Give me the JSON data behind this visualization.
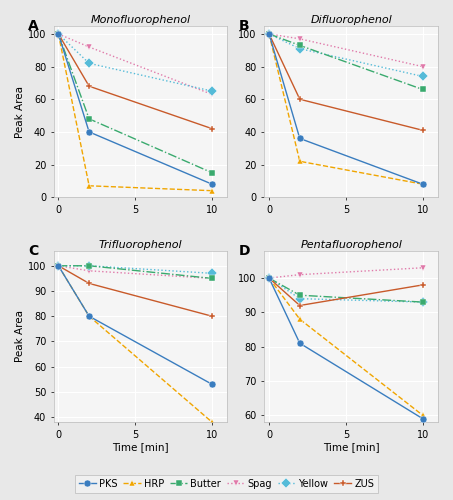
{
  "panels": [
    {
      "label": "A",
      "title": "Monofluorophenol",
      "series": {
        "PKS": {
          "x": [
            0,
            2,
            10
          ],
          "y": [
            100,
            40,
            8
          ],
          "color": "#3a7dbf",
          "linestyle": "-",
          "marker": "o",
          "markersize": 5
        },
        "HRP": {
          "x": [
            0,
            2,
            10
          ],
          "y": [
            100,
            7,
            4
          ],
          "color": "#f0a500",
          "linestyle": "--",
          "marker": "^",
          "markersize": 5
        },
        "Butter": {
          "x": [
            0,
            2,
            10
          ],
          "y": [
            100,
            48,
            15
          ],
          "color": "#3aaa6e",
          "linestyle": "-.",
          "marker": "s",
          "markersize": 5
        },
        "Spag": {
          "x": [
            0,
            2,
            10
          ],
          "y": [
            100,
            92,
            63
          ],
          "color": "#e07aaa",
          "linestyle": ":",
          "marker": "v",
          "markersize": 5
        },
        "Yellow": {
          "x": [
            0,
            2,
            10
          ],
          "y": [
            100,
            82,
            65
          ],
          "color": "#55bbd8",
          "linestyle": ":",
          "marker": "D",
          "markersize": 5
        },
        "ZUS": {
          "x": [
            0,
            2,
            10
          ],
          "y": [
            100,
            68,
            42
          ],
          "color": "#c85a2a",
          "linestyle": "-",
          "marker": "P",
          "markersize": 5
        }
      },
      "ylim": [
        0,
        105
      ],
      "yticks": [
        0,
        20,
        40,
        60,
        80,
        100
      ],
      "xlim": [
        -0.3,
        11
      ],
      "xticks": [
        0,
        5,
        10
      ]
    },
    {
      "label": "B",
      "title": "Difluorophenol",
      "series": {
        "PKS": {
          "x": [
            0,
            2,
            10
          ],
          "y": [
            100,
            36,
            8
          ],
          "color": "#3a7dbf",
          "linestyle": "-",
          "marker": "o",
          "markersize": 5
        },
        "HRP": {
          "x": [
            0,
            2,
            10
          ],
          "y": [
            100,
            22,
            8
          ],
          "color": "#f0a500",
          "linestyle": "--",
          "marker": "^",
          "markersize": 5
        },
        "Butter": {
          "x": [
            0,
            2,
            10
          ],
          "y": [
            100,
            93,
            66
          ],
          "color": "#3aaa6e",
          "linestyle": "-.",
          "marker": "s",
          "markersize": 5
        },
        "Spag": {
          "x": [
            0,
            2,
            10
          ],
          "y": [
            100,
            97,
            80
          ],
          "color": "#e07aaa",
          "linestyle": ":",
          "marker": "v",
          "markersize": 5
        },
        "Yellow": {
          "x": [
            0,
            2,
            10
          ],
          "y": [
            100,
            91,
            74
          ],
          "color": "#55bbd8",
          "linestyle": ":",
          "marker": "D",
          "markersize": 5
        },
        "ZUS": {
          "x": [
            0,
            2,
            10
          ],
          "y": [
            100,
            60,
            41
          ],
          "color": "#c85a2a",
          "linestyle": "-",
          "marker": "P",
          "markersize": 5
        }
      },
      "ylim": [
        0,
        105
      ],
      "yticks": [
        0,
        20,
        40,
        60,
        80,
        100
      ],
      "xlim": [
        -0.3,
        11
      ],
      "xticks": [
        0,
        5,
        10
      ]
    },
    {
      "label": "C",
      "title": "Trifluorophenol",
      "series": {
        "PKS": {
          "x": [
            0,
            2,
            10
          ],
          "y": [
            100,
            80,
            53
          ],
          "color": "#3a7dbf",
          "linestyle": "-",
          "marker": "o",
          "markersize": 5
        },
        "HRP": {
          "x": [
            0,
            2,
            10
          ],
          "y": [
            100,
            80,
            38
          ],
          "color": "#f0a500",
          "linestyle": "--",
          "marker": "^",
          "markersize": 5
        },
        "Butter": {
          "x": [
            0,
            2,
            10
          ],
          "y": [
            100,
            100,
            95
          ],
          "color": "#3aaa6e",
          "linestyle": "-.",
          "marker": "s",
          "markersize": 5
        },
        "Spag": {
          "x": [
            0,
            2,
            10
          ],
          "y": [
            100,
            98,
            95
          ],
          "color": "#e07aaa",
          "linestyle": ":",
          "marker": "v",
          "markersize": 5
        },
        "Yellow": {
          "x": [
            0,
            2,
            10
          ],
          "y": [
            100,
            100,
            97
          ],
          "color": "#55bbd8",
          "linestyle": ":",
          "marker": "D",
          "markersize": 5
        },
        "ZUS": {
          "x": [
            0,
            2,
            10
          ],
          "y": [
            100,
            93,
            80
          ],
          "color": "#c85a2a",
          "linestyle": "-",
          "marker": "P",
          "markersize": 5
        }
      },
      "ylim": [
        38,
        106
      ],
      "yticks": [
        40,
        50,
        60,
        70,
        80,
        90,
        100
      ],
      "xlim": [
        -0.3,
        11
      ],
      "xticks": [
        0,
        5,
        10
      ]
    },
    {
      "label": "D",
      "title": "Pentafluorophenol",
      "series": {
        "PKS": {
          "x": [
            0,
            2,
            10
          ],
          "y": [
            100,
            81,
            59
          ],
          "color": "#3a7dbf",
          "linestyle": "-",
          "marker": "o",
          "markersize": 5
        },
        "HRP": {
          "x": [
            0,
            2,
            10
          ],
          "y": [
            100,
            88,
            60
          ],
          "color": "#f0a500",
          "linestyle": "--",
          "marker": "^",
          "markersize": 5
        },
        "Butter": {
          "x": [
            0,
            2,
            10
          ],
          "y": [
            100,
            95,
            93
          ],
          "color": "#3aaa6e",
          "linestyle": "-.",
          "marker": "s",
          "markersize": 5
        },
        "Spag": {
          "x": [
            0,
            2,
            10
          ],
          "y": [
            100,
            101,
            103
          ],
          "color": "#e07aaa",
          "linestyle": ":",
          "marker": "v",
          "markersize": 5
        },
        "Yellow": {
          "x": [
            0,
            2,
            10
          ],
          "y": [
            100,
            94,
            93
          ],
          "color": "#55bbd8",
          "linestyle": ":",
          "marker": "D",
          "markersize": 5
        },
        "ZUS": {
          "x": [
            0,
            2,
            10
          ],
          "y": [
            100,
            92,
            98
          ],
          "color": "#c85a2a",
          "linestyle": "-",
          "marker": "P",
          "markersize": 5
        }
      },
      "ylim": [
        58,
        108
      ],
      "yticks": [
        60,
        70,
        80,
        90,
        100
      ],
      "xlim": [
        -0.3,
        11
      ],
      "xticks": [
        0,
        5,
        10
      ]
    }
  ],
  "legend_order": [
    "PKS",
    "HRP",
    "Butter",
    "Spag",
    "Yellow",
    "ZUS"
  ],
  "legend_colors": {
    "PKS": "#3a7dbf",
    "HRP": "#f0a500",
    "Butter": "#3aaa6e",
    "Spag": "#e07aaa",
    "Yellow": "#55bbd8",
    "ZUS": "#c85a2a"
  },
  "legend_markers": {
    "PKS": "o",
    "HRP": "^",
    "Butter": "s",
    "Spag": "v",
    "Yellow": "D",
    "ZUS": "P"
  },
  "legend_linestyles": {
    "PKS": "-",
    "HRP": "--",
    "Butter": "-.",
    "Spag": ":",
    "Yellow": ":",
    "ZUS": "-"
  },
  "ylabel": "Peak Area",
  "xlabel": "Time [min]",
  "bg_color": "#e8e8e8",
  "plot_bg_color": "#f5f5f5",
  "grid_color": "#ffffff",
  "title_fontsize": 8,
  "label_fontsize": 7.5,
  "tick_fontsize": 7,
  "legend_fontsize": 7
}
